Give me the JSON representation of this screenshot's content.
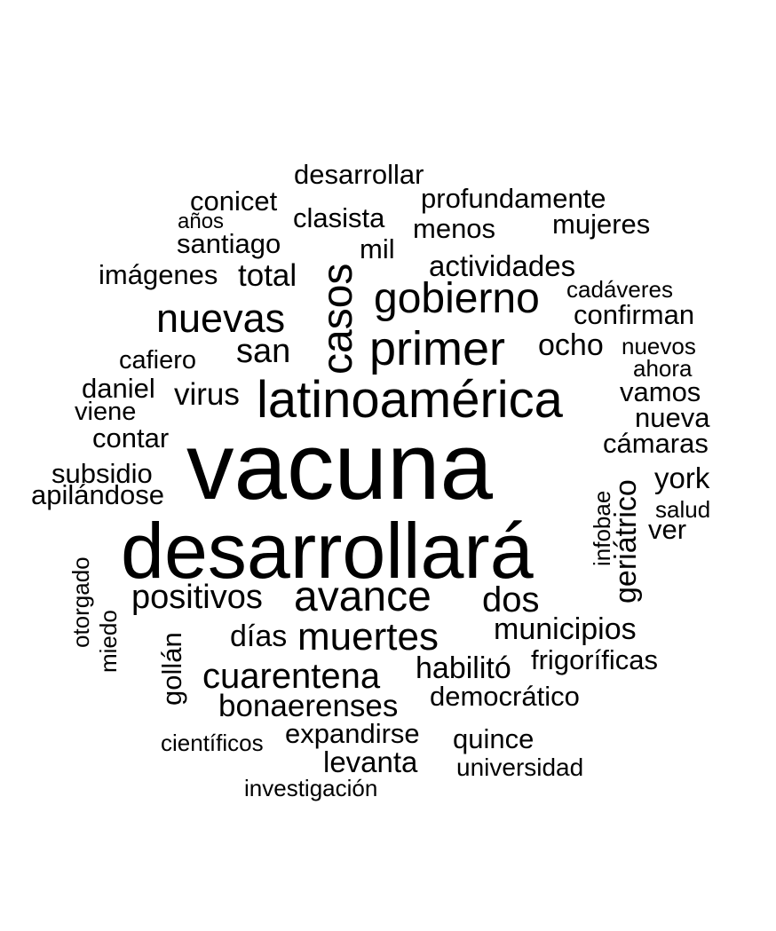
{
  "text_color": "#000000",
  "background": "#ffffff",
  "words": {
    "vacuna": "vacuna",
    "desarrollara": "desarrollará",
    "latinoamerica": "latinoamérica",
    "primer": "primer",
    "gobierno": "gobierno",
    "nuevas": "nuevas",
    "casos": "casos",
    "avance": "avance",
    "muertes": "muertes",
    "cuarentena": "cuarentena",
    "positivos": "positivos",
    "dos": "dos",
    "bonaerenses": "bonaerenses",
    "habilito": "habilitó",
    "municipios": "municipios",
    "san": "san",
    "dias": "días",
    "actividades": "actividades",
    "desarrollar": "desarrollar",
    "profundamente": "profundamente",
    "conicet": "conicet",
    "clasista": "clasista",
    "anos": "años",
    "menos": "menos",
    "mujeres": "mujeres",
    "santiago": "santiago",
    "mil": "mil",
    "imagenes": "imágenes",
    "total": "total",
    "cadaveres": "cadáveres",
    "confirman": "confirman",
    "ocho": "ocho",
    "nuevos": "nuevos",
    "cafiero": "cafiero",
    "ahora": "ahora",
    "daniel": "daniel",
    "virus": "virus",
    "vamos": "vamos",
    "viene": "viene",
    "nueva": "nueva",
    "contar": "contar",
    "camaras": "cámaras",
    "subsidio": "subsidio",
    "york": "york",
    "apilandose": "apilándose",
    "infobae": "infobae",
    "geriatrico": "geriátrico",
    "salud": "salud",
    "ver": "ver",
    "otorgado": "otorgado",
    "miedo": "miedo",
    "gollan": "gollán",
    "frigorificas": "frigoríficas",
    "democratico": "democrático",
    "expandirse": "expandirse",
    "quince": "quince",
    "cientificos": "científicos",
    "levanta": "levanta",
    "universidad": "universidad",
    "investigacion": "investigación"
  }
}
